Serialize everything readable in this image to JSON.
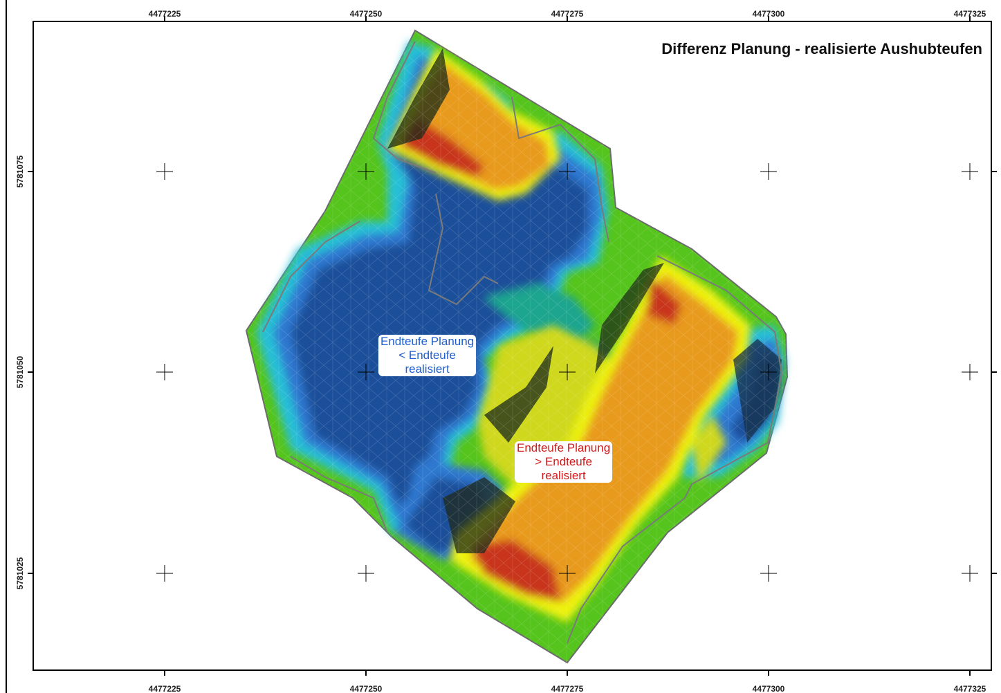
{
  "title": "Differenz Planung - realisierte Aushubteufen",
  "axes": {
    "x_ticks": [
      "4477225",
      "4477250",
      "4477275",
      "4477300",
      "4477325"
    ],
    "y_ticks": [
      "5781075",
      "5781050",
      "5781025"
    ]
  },
  "annotations": {
    "blue": {
      "line1": "Endteufe Planung",
      "line2": "< Endteufe",
      "line3": "realisiert",
      "color": "#1f5fd0"
    },
    "red": {
      "line1": "Endteufe Planung",
      "line2": "> Endteufe",
      "line3": "realisiert",
      "color": "#d11a1a"
    }
  },
  "colors": {
    "neutral_green": "#55c41c",
    "deep_blue": "#1c4f9a",
    "mid_blue": "#2f78d0",
    "cyan": "#27bfd6",
    "teal": "#1fa58f",
    "yellow": "#eef20e",
    "orange": "#e89a1e",
    "red": "#c8341a"
  }
}
